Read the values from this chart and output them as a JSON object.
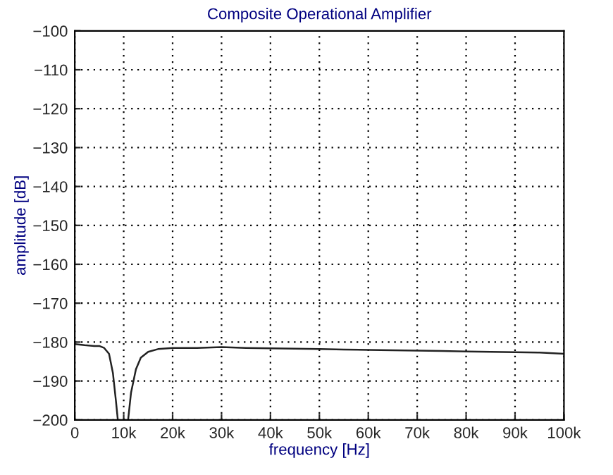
{
  "chart_data": {
    "type": "line",
    "title": "Composite Operational Amplifier",
    "xlabel": "frequency [Hz]",
    "ylabel": "amplitude [dB]",
    "x": [
      0,
      2000,
      4000,
      5000,
      6000,
      7000,
      7800,
      8400,
      8800,
      9800,
      10900,
      11500,
      12500,
      13500,
      15000,
      17000,
      20000,
      25000,
      30000,
      35000,
      40000,
      45000,
      50000,
      55000,
      60000,
      65000,
      70000,
      75000,
      80000,
      85000,
      90000,
      95000,
      100000
    ],
    "series": [
      {
        "color": "#222222",
        "values": [
          -180.5,
          -180.8,
          -181,
          -181,
          -181.5,
          -183,
          -188,
          -195,
          -200,
          null,
          -200,
          -193,
          -187,
          -184,
          -182.5,
          -181.8,
          -181.5,
          -181.5,
          -181.3,
          -181.5,
          -181.6,
          -181.7,
          -181.8,
          -181.9,
          -182,
          -182.1,
          -182.2,
          -182.3,
          -182.4,
          -182.5,
          -182.6,
          -182.7,
          -183
        ]
      }
    ],
    "xlim": [
      0,
      100000
    ],
    "ylim": [
      -200,
      -100
    ],
    "xticks": [
      0,
      {
        "value": 10000,
        "label": "10k"
      },
      {
        "value": 20000,
        "label": "20k"
      },
      {
        "value": 30000,
        "label": "30k"
      },
      {
        "value": 40000,
        "label": "40k"
      },
      {
        "value": 50000,
        "label": "50k"
      },
      {
        "value": 60000,
        "label": "60k"
      },
      {
        "value": 70000,
        "label": "70k"
      },
      {
        "value": 80000,
        "label": "80k"
      },
      {
        "value": 90000,
        "label": "90k"
      },
      {
        "value": 100000,
        "label": "100k"
      }
    ],
    "yticks": [
      {
        "value": -200,
        "label": "−200"
      },
      {
        "value": -190,
        "label": "−190"
      },
      {
        "value": -180,
        "label": "−180"
      },
      {
        "value": -170,
        "label": "−170"
      },
      {
        "value": -160,
        "label": "−160"
      },
      {
        "value": -150,
        "label": "−150"
      },
      {
        "value": -140,
        "label": "−140"
      },
      {
        "value": -130,
        "label": "−130"
      },
      {
        "value": -120,
        "label": "−120"
      },
      {
        "value": -110,
        "label": "−110"
      },
      {
        "value": -100,
        "label": "−100"
      }
    ],
    "grid": true,
    "legend": false,
    "marker": "none",
    "line_style": "solid"
  }
}
